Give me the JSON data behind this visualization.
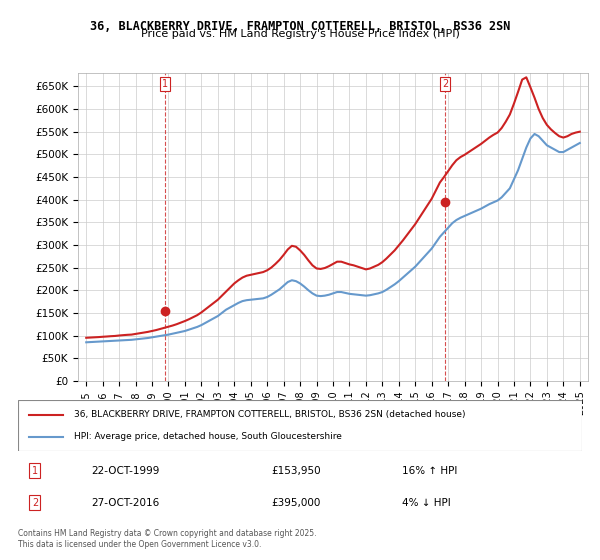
{
  "title1": "36, BLACKBERRY DRIVE, FRAMPTON COTTERELL, BRISTOL, BS36 2SN",
  "title2": "Price paid vs. HM Land Registry's House Price Index (HPI)",
  "legend_line1": "36, BLACKBERRY DRIVE, FRAMPTON COTTERELL, BRISTOL, BS36 2SN (detached house)",
  "legend_line2": "HPI: Average price, detached house, South Gloucestershire",
  "footnote": "Contains HM Land Registry data © Crown copyright and database right 2025.\nThis data is licensed under the Open Government Licence v3.0.",
  "transaction1_label": "1",
  "transaction1_date": "22-OCT-1999",
  "transaction1_price": "£153,950",
  "transaction1_hpi": "16% ↑ HPI",
  "transaction2_label": "2",
  "transaction2_date": "27-OCT-2016",
  "transaction2_price": "£395,000",
  "transaction2_hpi": "4% ↓ HPI",
  "sale1_year": 1999.8,
  "sale1_price": 153950,
  "sale2_year": 2016.82,
  "sale2_price": 395000,
  "hpi_color": "#6699cc",
  "property_color": "#cc2222",
  "sale_marker_color": "#cc2222",
  "ylim_min": 0,
  "ylim_max": 680000,
  "ytick_step": 50000,
  "background_color": "#ffffff",
  "grid_color": "#cccccc",
  "hpi_years": [
    1995.0,
    1995.25,
    1995.5,
    1995.75,
    1996.0,
    1996.25,
    1996.5,
    1996.75,
    1997.0,
    1997.25,
    1997.5,
    1997.75,
    1998.0,
    1998.25,
    1998.5,
    1998.75,
    1999.0,
    1999.25,
    1999.5,
    1999.75,
    2000.0,
    2000.25,
    2000.5,
    2000.75,
    2001.0,
    2001.25,
    2001.5,
    2001.75,
    2002.0,
    2002.25,
    2002.5,
    2002.75,
    2003.0,
    2003.25,
    2003.5,
    2003.75,
    2004.0,
    2004.25,
    2004.5,
    2004.75,
    2005.0,
    2005.25,
    2005.5,
    2005.75,
    2006.0,
    2006.25,
    2006.5,
    2006.75,
    2007.0,
    2007.25,
    2007.5,
    2007.75,
    2008.0,
    2008.25,
    2008.5,
    2008.75,
    2009.0,
    2009.25,
    2009.5,
    2009.75,
    2010.0,
    2010.25,
    2010.5,
    2010.75,
    2011.0,
    2011.25,
    2011.5,
    2011.75,
    2012.0,
    2012.25,
    2012.5,
    2012.75,
    2013.0,
    2013.25,
    2013.5,
    2013.75,
    2014.0,
    2014.25,
    2014.5,
    2014.75,
    2015.0,
    2015.25,
    2015.5,
    2015.75,
    2016.0,
    2016.25,
    2016.5,
    2016.75,
    2017.0,
    2017.25,
    2017.5,
    2017.75,
    2018.0,
    2018.25,
    2018.5,
    2018.75,
    2019.0,
    2019.25,
    2019.5,
    2019.75,
    2020.0,
    2020.25,
    2020.5,
    2020.75,
    2021.0,
    2021.25,
    2021.5,
    2021.75,
    2022.0,
    2022.25,
    2022.5,
    2022.75,
    2023.0,
    2023.25,
    2023.5,
    2023.75,
    2024.0,
    2024.25,
    2024.5,
    2024.75,
    2025.0
  ],
  "hpi_values": [
    85000,
    85500,
    86000,
    86500,
    87000,
    87500,
    88000,
    88500,
    89000,
    89500,
    90000,
    90500,
    91500,
    92500,
    93500,
    94500,
    96000,
    97500,
    99000,
    100500,
    102000,
    104000,
    106000,
    108000,
    110000,
    113000,
    116000,
    119000,
    123000,
    128000,
    133000,
    138000,
    143000,
    150000,
    157000,
    162000,
    167000,
    172000,
    176000,
    178000,
    179000,
    180000,
    181000,
    182000,
    185000,
    190000,
    196000,
    202000,
    210000,
    218000,
    222000,
    220000,
    215000,
    208000,
    200000,
    193000,
    188000,
    187000,
    188000,
    190000,
    193000,
    196000,
    196000,
    194000,
    192000,
    191000,
    190000,
    189000,
    188000,
    189000,
    191000,
    193000,
    196000,
    201000,
    207000,
    213000,
    220000,
    228000,
    236000,
    244000,
    252000,
    262000,
    272000,
    282000,
    292000,
    305000,
    318000,
    328000,
    338000,
    348000,
    355000,
    360000,
    364000,
    368000,
    372000,
    376000,
    380000,
    385000,
    390000,
    394000,
    398000,
    405000,
    415000,
    425000,
    445000,
    465000,
    490000,
    515000,
    535000,
    545000,
    540000,
    530000,
    520000,
    515000,
    510000,
    505000,
    505000,
    510000,
    515000,
    520000,
    525000
  ],
  "prop_years": [
    1995.0,
    1995.25,
    1995.5,
    1995.75,
    1996.0,
    1996.25,
    1996.5,
    1996.75,
    1997.0,
    1997.25,
    1997.5,
    1997.75,
    1998.0,
    1998.25,
    1998.5,
    1998.75,
    1999.0,
    1999.25,
    1999.5,
    1999.75,
    2000.0,
    2000.25,
    2000.5,
    2000.75,
    2001.0,
    2001.25,
    2001.5,
    2001.75,
    2002.0,
    2002.25,
    2002.5,
    2002.75,
    2003.0,
    2003.25,
    2003.5,
    2003.75,
    2004.0,
    2004.25,
    2004.5,
    2004.75,
    2005.0,
    2005.25,
    2005.5,
    2005.75,
    2006.0,
    2006.25,
    2006.5,
    2006.75,
    2007.0,
    2007.25,
    2007.5,
    2007.75,
    2008.0,
    2008.25,
    2008.5,
    2008.75,
    2009.0,
    2009.25,
    2009.5,
    2009.75,
    2010.0,
    2010.25,
    2010.5,
    2010.75,
    2011.0,
    2011.25,
    2011.5,
    2011.75,
    2012.0,
    2012.25,
    2012.5,
    2012.75,
    2013.0,
    2013.25,
    2013.5,
    2013.75,
    2014.0,
    2014.25,
    2014.5,
    2014.75,
    2015.0,
    2015.25,
    2015.5,
    2015.75,
    2016.0,
    2016.25,
    2016.5,
    2016.75,
    2017.0,
    2017.25,
    2017.5,
    2017.75,
    2018.0,
    2018.25,
    2018.5,
    2018.75,
    2019.0,
    2019.25,
    2019.5,
    2019.75,
    2020.0,
    2020.25,
    2020.5,
    2020.75,
    2021.0,
    2021.25,
    2021.5,
    2021.75,
    2022.0,
    2022.25,
    2022.5,
    2022.75,
    2023.0,
    2023.25,
    2023.5,
    2023.75,
    2024.0,
    2024.25,
    2024.5,
    2024.75,
    2025.0
  ],
  "prop_values": [
    95000,
    95500,
    96000,
    96500,
    97200,
    97800,
    98500,
    99000,
    100000,
    100800,
    101500,
    102000,
    103500,
    105000,
    106500,
    108000,
    110000,
    112000,
    114500,
    117000,
    119500,
    122000,
    125000,
    128500,
    132000,
    136000,
    140500,
    145000,
    151000,
    158000,
    165000,
    172000,
    179000,
    188000,
    197000,
    206000,
    215000,
    222000,
    228000,
    232000,
    234000,
    236000,
    238000,
    240000,
    244000,
    250000,
    258000,
    267000,
    278000,
    290000,
    298000,
    296000,
    288000,
    278000,
    266000,
    255000,
    248000,
    247000,
    249000,
    253000,
    258000,
    263000,
    263000,
    260000,
    257000,
    255000,
    252000,
    249000,
    246000,
    248000,
    252000,
    256000,
    262000,
    270000,
    279000,
    288000,
    299000,
    310000,
    322000,
    334000,
    346000,
    360000,
    374000,
    388000,
    402000,
    420000,
    438000,
    450000,
    463000,
    476000,
    487000,
    494000,
    499000,
    505000,
    511000,
    517000,
    523000,
    530000,
    537000,
    543000,
    548000,
    558000,
    572000,
    588000,
    612000,
    638000,
    665000,
    670000,
    648000,
    625000,
    600000,
    580000,
    565000,
    555000,
    547000,
    540000,
    537000,
    540000,
    545000,
    548000,
    550000
  ]
}
